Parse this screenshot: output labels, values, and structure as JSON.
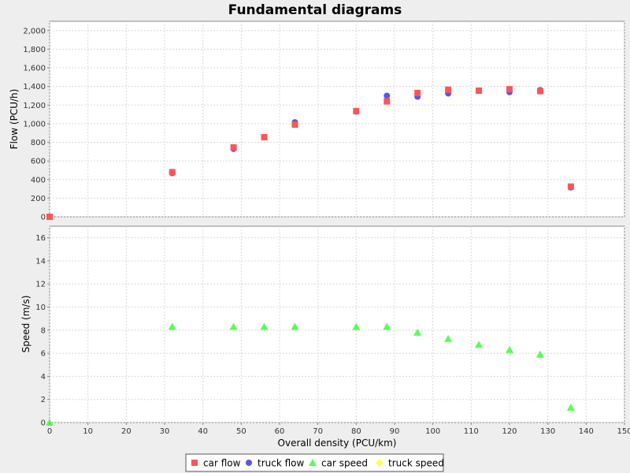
{
  "chart_data": {
    "type": "scatter",
    "title": "Fundamental diagrams",
    "xlabel": "Overall density (PCU/km)",
    "xlim": [
      0,
      150
    ],
    "x_ticks": [
      "0",
      "10",
      "20",
      "30",
      "40",
      "50",
      "60",
      "70",
      "80",
      "90",
      "100",
      "110",
      "120",
      "130",
      "140",
      "150"
    ],
    "grid": true,
    "legend_position": "bottom-center",
    "panels": [
      {
        "ylabel": "Flow (PCU/h)",
        "ylim": [
          0,
          2100
        ],
        "y_ticks": [
          "0",
          "200",
          "400",
          "600",
          "800",
          "1,000",
          "1,200",
          "1,400",
          "1,600",
          "1,800",
          "2,000"
        ],
        "series": [
          {
            "name": "truck flow",
            "color": "#5555ff",
            "marker": "circle",
            "x": [
              32,
              48,
              56,
              64,
              80,
              88,
              96,
              104,
              112,
              120,
              128,
              136
            ],
            "y": [
              470,
              730,
              855,
              1015,
              1130,
              1300,
              1290,
              1325,
              1355,
              1340,
              1360,
              315
            ]
          },
          {
            "name": "car flow",
            "color": "#ff5555",
            "marker": "square",
            "x": [
              0,
              32,
              48,
              56,
              64,
              80,
              88,
              96,
              104,
              112,
              120,
              128,
              136
            ],
            "y": [
              0,
              480,
              745,
              855,
              990,
              1135,
              1240,
              1330,
              1365,
              1355,
              1370,
              1350,
              325
            ]
          }
        ]
      },
      {
        "ylabel": "Speed (m/s)",
        "ylim": [
          0,
          17
        ],
        "y_ticks": [
          "0",
          "2",
          "4",
          "6",
          "8",
          "10",
          "12",
          "14",
          "16"
        ],
        "series": [
          {
            "name": "car speed",
            "color": "#55ff55",
            "marker": "triangle",
            "x": [
              0,
              32,
              48,
              56,
              64,
              80,
              88,
              96,
              104,
              112,
              120,
              128,
              136
            ],
            "y": [
              0,
              8.3,
              8.3,
              8.3,
              8.3,
              8.3,
              8.3,
              7.8,
              7.25,
              6.75,
              6.3,
              5.9,
              1.3
            ]
          }
        ]
      }
    ],
    "legend": [
      {
        "label": "car flow",
        "color": "#ff5555",
        "marker": "square"
      },
      {
        "label": "truck flow",
        "color": "#5555ff",
        "marker": "circle"
      },
      {
        "label": "car speed",
        "color": "#55ff55",
        "marker": "triangle"
      },
      {
        "label": "truck speed",
        "color": "#ffff55",
        "marker": "diamond"
      }
    ]
  }
}
